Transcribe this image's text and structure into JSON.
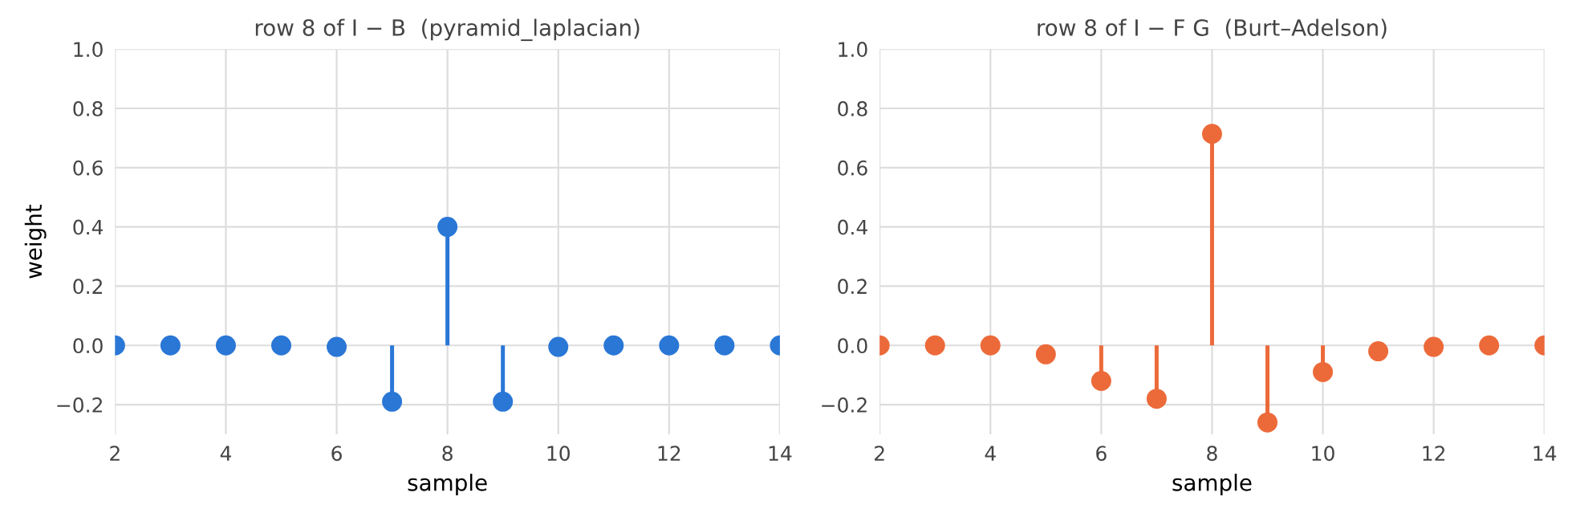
{
  "chart_data": [
    {
      "type": "lollipop",
      "title": "row 8 of I − B  (pyramid_laplacian)",
      "xlabel": "sample",
      "ylabel": "weight",
      "x": [
        2,
        3,
        4,
        5,
        6,
        7,
        8,
        9,
        10,
        11,
        12,
        13,
        14
      ],
      "series": [
        {
          "color": "#2a77d6",
          "values": [
            0,
            0,
            0,
            0,
            -0.005,
            -0.19,
            0.4,
            -0.19,
            -0.005,
            0,
            0,
            0,
            0
          ]
        }
      ],
      "xlim": [
        2,
        14
      ],
      "ylim": [
        -0.3,
        1.0
      ],
      "xticks": [
        2,
        4,
        6,
        8,
        10,
        12,
        14
      ],
      "yticks": [
        {
          "value": -0.2,
          "label": "−0.2"
        },
        {
          "value": 0,
          "label": "0.0"
        },
        0.2,
        0.4,
        0.6,
        0.8,
        {
          "value": 1,
          "label": "1.0"
        }
      ],
      "grid": true,
      "marker": "circle"
    },
    {
      "type": "lollipop",
      "title": "row 8 of I − F G  (Burt–Adelson)",
      "xlabel": "sample",
      "x": [
        2,
        3,
        4,
        5,
        6,
        7,
        8,
        9,
        10,
        11,
        12,
        13,
        14
      ],
      "series": [
        {
          "color": "#ec6a3a",
          "values": [
            0,
            0,
            0,
            -0.03,
            -0.12,
            -0.18,
            0.714,
            -0.26,
            -0.09,
            -0.02,
            -0.005,
            0,
            0
          ]
        }
      ],
      "xlim": [
        2,
        14
      ],
      "ylim": [
        -0.3,
        1.0
      ],
      "xticks": [
        2,
        4,
        6,
        8,
        10,
        12,
        14
      ],
      "yticks": [
        {
          "value": -0.2,
          "label": "−0.2"
        },
        {
          "value": 0,
          "label": "0.0"
        },
        0.2,
        0.4,
        0.6,
        0.8,
        {
          "value": 1,
          "label": "1.0"
        }
      ],
      "grid": true,
      "marker": "circle"
    }
  ]
}
